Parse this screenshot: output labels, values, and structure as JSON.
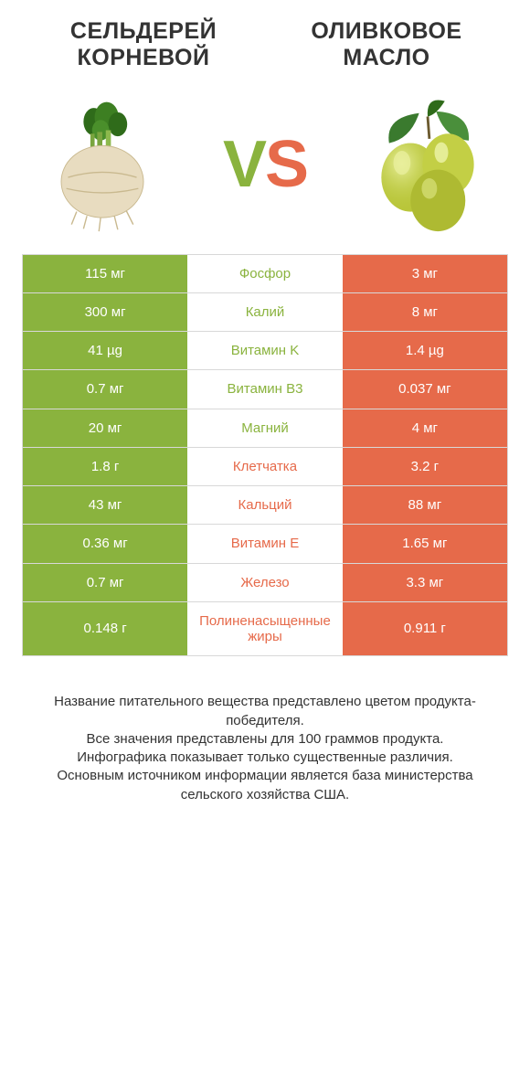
{
  "colors": {
    "green": "#8ab33e",
    "orange": "#e66a4a",
    "text": "#333333",
    "border": "#d8d8d8",
    "white": "#ffffff"
  },
  "left_title": "СЕЛЬДЕРЕЙ КОРНЕВОЙ",
  "right_title": "ОЛИВКОВОЕ МАСЛО",
  "vs_v": "V",
  "vs_s": "S",
  "rows": [
    {
      "left": "115 мг",
      "label": "Фосфор",
      "right": "3 мг",
      "label_side": "left"
    },
    {
      "left": "300 мг",
      "label": "Калий",
      "right": "8 мг",
      "label_side": "left"
    },
    {
      "left": "41 µg",
      "label": "Витамин K",
      "right": "1.4 µg",
      "label_side": "left"
    },
    {
      "left": "0.7 мг",
      "label": "Витамин B3",
      "right": "0.037 мг",
      "label_side": "left"
    },
    {
      "left": "20 мг",
      "label": "Магний",
      "right": "4 мг",
      "label_side": "left"
    },
    {
      "left": "1.8 г",
      "label": "Клетчатка",
      "right": "3.2 г",
      "label_side": "right"
    },
    {
      "left": "43 мг",
      "label": "Кальций",
      "right": "88 мг",
      "label_side": "right"
    },
    {
      "left": "0.36 мг",
      "label": "Витамин E",
      "right": "1.65 мг",
      "label_side": "right"
    },
    {
      "left": "0.7 мг",
      "label": "Железо",
      "right": "3.3 мг",
      "label_side": "right"
    },
    {
      "left": "0.148 г",
      "label": "Полиненасыщенные жиры",
      "right": "0.911 г",
      "label_side": "right"
    }
  ],
  "footer_lines": [
    "Название питательного вещества представлено цветом продукта-победителя.",
    "Все значения представлены для 100 граммов продукта.",
    "Инфографика показывает только существенные различия.",
    "Основным источником информации является база министерства сельского хозяйства США."
  ]
}
